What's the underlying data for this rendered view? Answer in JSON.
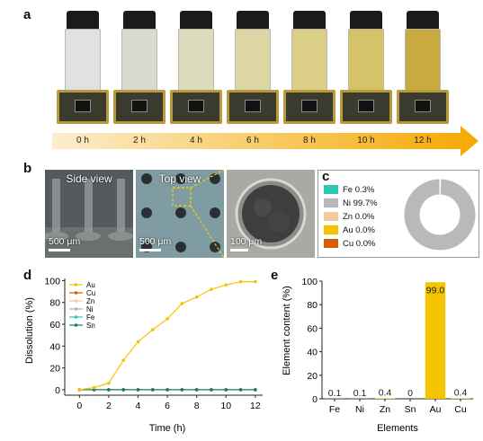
{
  "panels": {
    "a": "a",
    "b": "b",
    "c": "c",
    "d": "d",
    "e": "e"
  },
  "panel_a": {
    "time_labels": [
      "0 h",
      "2 h",
      "4 h",
      "6 h",
      "8 h",
      "10 h",
      "12 h"
    ],
    "vial_colors": [
      "#dfe2e0",
      "#d8d9cf",
      "#dcdbbb",
      "#dcd6a4",
      "#dbcf88",
      "#d5c36a",
      "#c8aa3e"
    ],
    "arrow_colors": [
      "#fbeecd",
      "#f5a800"
    ]
  },
  "panel_b": {
    "side_view": {
      "title": "Side view",
      "scale": "500 μm"
    },
    "top_view": {
      "title": "Top view",
      "scale": "500 μm"
    },
    "closeup": {
      "scale": "100 μm"
    }
  },
  "panel_c": {
    "legend": [
      {
        "label": "Fe 0.3%",
        "color": "#2ec4b6"
      },
      {
        "label": "Ni 99.7%",
        "color": "#b9b9b9"
      },
      {
        "label": "Zn 0.0%",
        "color": "#f5c99a"
      },
      {
        "label": "Au 0.0%",
        "color": "#f5c400"
      },
      {
        "label": "Cu 0.0%",
        "color": "#d55e00"
      }
    ]
  },
  "chart_data": [
    {
      "type": "line",
      "x": [
        0,
        1,
        2,
        3,
        4,
        5,
        6,
        7,
        8,
        9,
        10,
        11,
        12
      ],
      "xlabel": "Time (h)",
      "ylabel": "Dissolution (%)",
      "xticks": [
        "0",
        "2",
        "4",
        "6",
        "8",
        "10",
        "12"
      ],
      "yticks": [
        "0",
        "20",
        "40",
        "60",
        "80",
        "100"
      ],
      "xlim": [
        -1,
        12.5
      ],
      "ylim": [
        -5,
        102
      ],
      "series": [
        {
          "name": "Au",
          "color": "#f5c400",
          "values": [
            0,
            2,
            6,
            27,
            44,
            55,
            65,
            79,
            85,
            92,
            96,
            99,
            99
          ]
        },
        {
          "name": "Cu",
          "color": "#d55e00",
          "values": [
            0,
            0,
            0,
            0,
            0,
            0,
            0,
            0,
            0,
            0,
            0,
            0,
            0
          ]
        },
        {
          "name": "Zn",
          "color": "#f5c99a",
          "values": [
            0,
            0,
            0,
            0,
            0,
            0,
            0,
            0,
            0,
            0,
            0,
            0,
            0
          ]
        },
        {
          "name": "Ni",
          "color": "#b0b0b0",
          "values": [
            0,
            0,
            0,
            0,
            0,
            0,
            0,
            0,
            0,
            0,
            0,
            0,
            0
          ]
        },
        {
          "name": "Fe",
          "color": "#2ec4b6",
          "values": [
            0,
            0,
            0,
            0,
            0,
            0,
            0,
            0,
            0,
            0,
            0,
            0,
            0
          ]
        },
        {
          "name": "Sn",
          "color": "#137a6a",
          "values": [
            0,
            0,
            0,
            0,
            0,
            0,
            0,
            0,
            0,
            0,
            0,
            0,
            0
          ]
        }
      ]
    },
    {
      "type": "bar",
      "categories": [
        "Fe",
        "Ni",
        "Zn",
        "Sn",
        "Au",
        "Cu"
      ],
      "values": [
        0.1,
        0.1,
        0.4,
        0,
        99.0,
        0.4
      ],
      "value_labels": [
        "0.1",
        "0.1",
        "0.4",
        "0",
        "99.0",
        "0.4"
      ],
      "xlabel": "Elements",
      "ylabel": "Element content (%)",
      "yticks": [
        "0",
        "20",
        "40",
        "60",
        "80",
        "100"
      ],
      "ylim": [
        0,
        100
      ],
      "bar_color": "#f5c400"
    },
    {
      "type": "pie",
      "categories": [
        "Fe",
        "Ni",
        "Zn",
        "Au",
        "Cu"
      ],
      "values": [
        0.3,
        99.7,
        0.0,
        0.0,
        0.0
      ]
    }
  ]
}
